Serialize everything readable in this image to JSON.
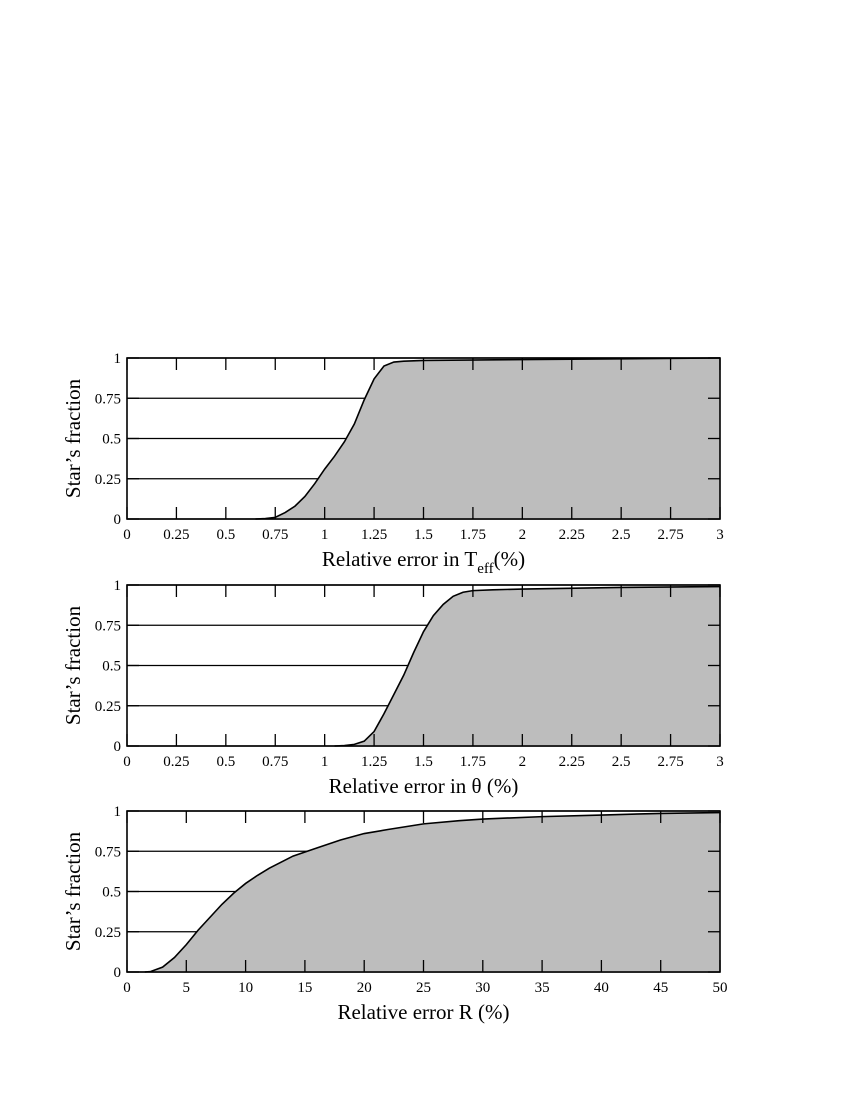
{
  "chart_data": [
    {
      "type": "area",
      "x_label": "Relative error in T",
      "x_label_sub": "eff",
      "x_label_end": "(%)",
      "y_label": "Star’s fraction",
      "x": [
        0.65,
        0.7,
        0.75,
        0.8,
        0.85,
        0.9,
        0.95,
        1.0,
        1.05,
        1.1,
        1.15,
        1.2,
        1.25,
        1.3,
        1.35,
        1.4,
        1.5,
        2,
        2.5,
        3
      ],
      "values": [
        0,
        0.003,
        0.01,
        0.04,
        0.08,
        0.14,
        0.22,
        0.31,
        0.39,
        0.48,
        0.59,
        0.74,
        0.87,
        0.95,
        0.975,
        0.98,
        0.985,
        0.99,
        0.995,
        1.0
      ],
      "xlim": [
        0,
        3
      ],
      "ylim": [
        0,
        1
      ],
      "xticks": [
        0,
        0.25,
        0.5,
        0.75,
        1,
        1.25,
        1.5,
        1.75,
        2,
        2.25,
        2.5,
        2.75,
        3
      ],
      "yticks": [
        0,
        0.25,
        0.5,
        0.75,
        1
      ],
      "grid": true,
      "color": "#000000",
      "fill": "#bdbdbd"
    },
    {
      "type": "area",
      "x_label": "Relative error in θ (%)",
      "y_label": "Star’s fraction",
      "x": [
        1.05,
        1.1,
        1.15,
        1.2,
        1.25,
        1.3,
        1.35,
        1.4,
        1.45,
        1.5,
        1.55,
        1.6,
        1.65,
        1.7,
        1.75,
        1.85,
        2,
        2.5,
        3
      ],
      "values": [
        0,
        0.003,
        0.01,
        0.03,
        0.09,
        0.2,
        0.32,
        0.44,
        0.58,
        0.71,
        0.81,
        0.88,
        0.93,
        0.955,
        0.965,
        0.97,
        0.975,
        0.985,
        0.99
      ],
      "xlim": [
        0,
        3
      ],
      "ylim": [
        0,
        1
      ],
      "xticks": [
        0,
        0.25,
        0.5,
        0.75,
        1,
        1.25,
        1.5,
        1.75,
        2,
        2.25,
        2.5,
        2.75,
        3
      ],
      "yticks": [
        0,
        0.25,
        0.5,
        0.75,
        1
      ],
      "grid": true,
      "color": "#000000",
      "fill": "#bdbdbd"
    },
    {
      "type": "area",
      "x_label": "Relative error R (%)",
      "y_label": "Star’s fraction",
      "x": [
        1.5,
        2,
        3,
        4,
        5,
        6,
        7,
        8,
        9,
        10,
        11,
        12,
        14,
        16,
        18,
        20,
        22,
        25,
        28,
        30,
        35,
        40,
        45,
        50
      ],
      "values": [
        0,
        0.003,
        0.03,
        0.09,
        0.17,
        0.26,
        0.34,
        0.42,
        0.49,
        0.55,
        0.6,
        0.645,
        0.72,
        0.77,
        0.82,
        0.86,
        0.885,
        0.92,
        0.94,
        0.95,
        0.965,
        0.975,
        0.985,
        0.99
      ],
      "xlim": [
        0,
        50
      ],
      "ylim": [
        0,
        1
      ],
      "xticks": [
        0,
        5,
        10,
        15,
        20,
        25,
        30,
        35,
        40,
        45,
        50
      ],
      "yticks": [
        0,
        0.25,
        0.5,
        0.75,
        1
      ],
      "grid": true,
      "color": "#000000",
      "fill": "#bdbdbd"
    }
  ]
}
